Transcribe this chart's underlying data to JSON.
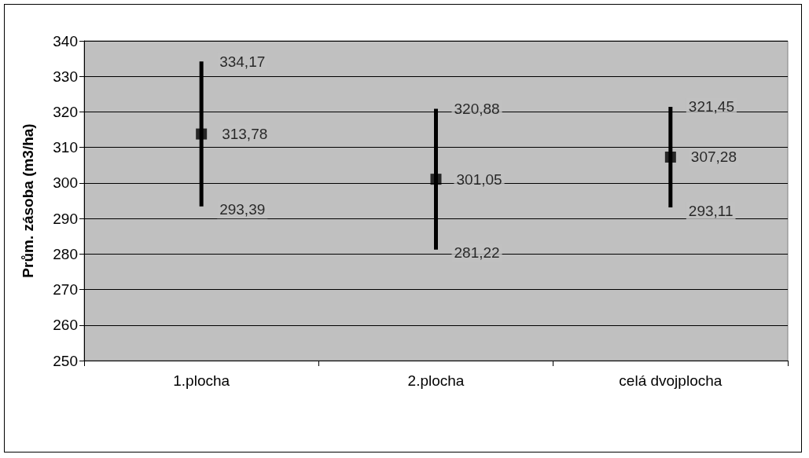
{
  "chart_data": {
    "type": "scatter",
    "ylabel": "Prům. zásoba (m3/ha)",
    "categories": [
      "1.plocha",
      "2.plocha",
      "celá dvojplocha"
    ],
    "series": [
      {
        "color": "#000000",
        "values": [
          313.78,
          301.05,
          307.28
        ],
        "value_labels": [
          "313,78",
          "301,05",
          "307,28"
        ],
        "errors": [
          [
            293.39,
            334.17
          ],
          [
            281.22,
            320.88
          ],
          [
            293.11,
            321.45
          ]
        ]
      }
    ],
    "annotations": [
      {
        "text": "334,17",
        "x": "1.plocha",
        "y": 334.17
      },
      {
        "text": "293,39",
        "x": "1.plocha",
        "y": 293.39
      },
      {
        "text": "320,88",
        "x": "2.plocha",
        "y": 320.88
      },
      {
        "text": "281,22",
        "x": "2.plocha",
        "y": 281.22
      },
      {
        "text": "321,45",
        "x": "celá dvojplocha",
        "y": 321.45
      },
      {
        "text": "293,11",
        "x": "celá dvojplocha",
        "y": 293.11
      }
    ],
    "ylim": [
      250,
      340
    ],
    "yticks": [
      250,
      260,
      270,
      280,
      290,
      300,
      310,
      320,
      330,
      340
    ],
    "grid": "y",
    "marker": "square"
  }
}
